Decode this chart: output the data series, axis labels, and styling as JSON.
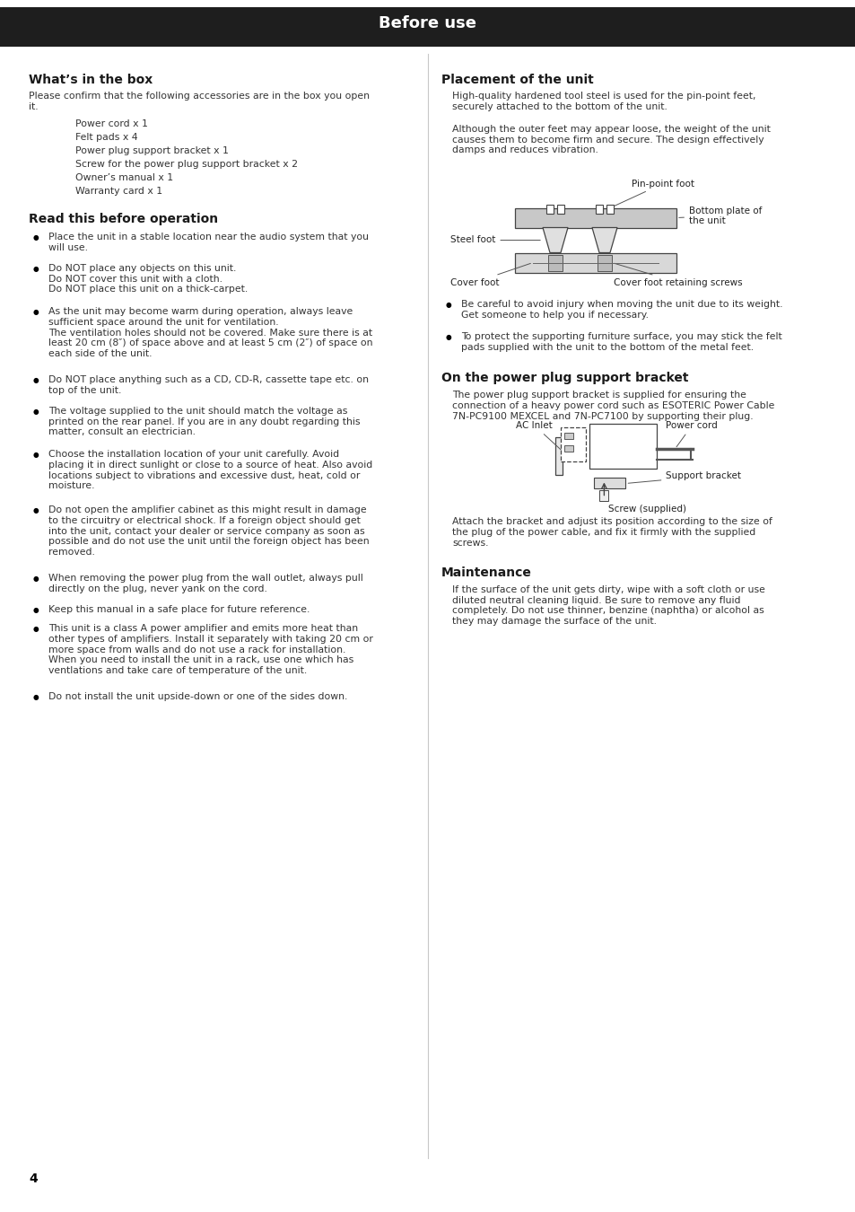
{
  "page_title": "Before use",
  "page_number": "4",
  "bg_color": "#ffffff",
  "header_bg": "#1e1e1e",
  "header_text_color": "#ffffff",
  "header_fontsize": 13,
  "section_title_fontsize": 10,
  "body_fontsize": 7.8,
  "label_fontsize": 7.5,
  "sections": {
    "whats_in_box": {
      "title": "What’s in the box",
      "intro": "Please confirm that the following accessories are in the box you open\nit.",
      "items": [
        "Power cord x 1",
        "Felt pads x 4",
        "Power plug support bracket x 1",
        "Screw for the power plug support bracket x 2",
        "Owner’s manual x 1",
        "Warranty card x 1"
      ]
    },
    "read_before": {
      "title": "Read this before operation",
      "bullets": [
        "Place the unit in a stable location near the audio system that you\nwill use.",
        "Do NOT place any objects on this unit.\nDo NOT cover this unit with a cloth.\nDo NOT place this unit on a thick-carpet.",
        "As the unit may become warm during operation, always leave\nsufficient space around the unit for ventilation.\nThe ventilation holes should not be covered. Make sure there is at\nleast 20 cm (8″) of space above and at least 5 cm (2″) of space on\neach side of the unit.",
        "Do NOT place anything such as a CD, CD-R, cassette tape etc. on\ntop of the unit.",
        "The voltage supplied to the unit should match the voltage as\nprinted on the rear panel. If you are in any doubt regarding this\nmatter, consult an electrician.",
        "Choose the installation location of your unit carefully. Avoid\nplacing it in direct sunlight or close to a source of heat. Also avoid\nlocations subject to vibrations and excessive dust, heat, cold or\nmoisture.",
        "Do not open the amplifier cabinet as this might result in damage\nto the circuitry or electrical shock. If a foreign object should get\ninto the unit, contact your dealer or service company as soon as\npossible and do not use the unit until the foreign object has been\nremoved.",
        "When removing the power plug from the wall outlet, always pull\ndirectly on the plug, never yank on the cord.",
        "Keep this manual in a safe place for future reference.",
        "This unit is a class A power amplifier and emits more heat than\nother types of amplifiers. Install it separately with taking 20 cm or\nmore space from walls and do not use a rack for installation.\nWhen you need to install the unit in a rack, use one which has\nventlations and take care of temperature of the unit.",
        "Do not install the unit upside-down or one of the sides down."
      ]
    },
    "placement": {
      "title": "Placement of the unit",
      "para1": "High-quality hardened tool steel is used for the pin-point feet,\nsecurely attached to the bottom of the unit.",
      "para2": "Although the outer feet may appear loose, the weight of the unit\ncauses them to become firm and secure. The design effectively\ndamps and reduces vibration.",
      "bullets": [
        "Be careful to avoid injury when moving the unit due to its weight.\nGet someone to help you if necessary.",
        "To protect the supporting furniture surface, you may stick the felt\npads supplied with the unit to the bottom of the metal feet."
      ],
      "diagram_labels": {
        "pin_point_foot": "Pin-point foot",
        "bottom_plate": "Bottom plate of\nthe unit",
        "steel_foot": "Steel foot",
        "cover_foot": "Cover foot",
        "cover_foot_retaining": "Cover foot retaining screws"
      }
    },
    "power_plug": {
      "title": "On the power plug support bracket",
      "para": "The power plug support bracket is supplied for ensuring the\nconnection of a heavy power cord such as ESOTERIC Power Cable\n7N-PC9100 MEXCEL and 7N-PC7100 by supporting their plug.",
      "after_diagram": "Attach the bracket and adjust its position according to the size of\nthe plug of the power cable, and fix it firmly with the supplied\nscrews.",
      "diagram_labels": {
        "ac_inlet": "AC Inlet",
        "power_cord": "Power cord",
        "support_bracket": "Support bracket",
        "screw": "Screw (supplied)"
      }
    },
    "maintenance": {
      "title": "Maintenance",
      "para": "If the surface of the unit gets dirty, wipe with a soft cloth or use\ndiluted neutral cleaning liquid. Be sure to remove any fluid\ncompletely. Do not use thinner, benzine (naphtha) or alcohol as\nthey may damage the surface of the unit."
    }
  }
}
